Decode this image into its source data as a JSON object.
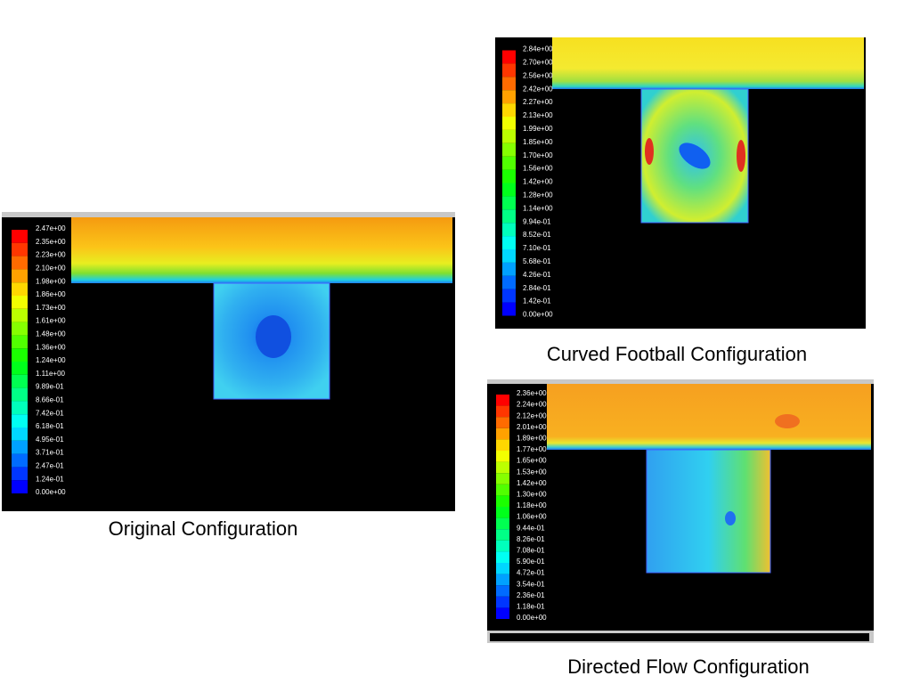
{
  "panels": [
    {
      "caption": "Original Configuration",
      "legend_labels": [
        "2.47e+00",
        "2.35e+00",
        "2.23e+00",
        "2.10e+00",
        "1.98e+00",
        "1.86e+00",
        "1.73e+00",
        "1.61e+00",
        "1.48e+00",
        "1.36e+00",
        "1.24e+00",
        "1.11e+00",
        "9.89e-01",
        "8.66e-01",
        "7.42e-01",
        "6.18e-01",
        "4.95e-01",
        "3.71e-01",
        "2.47e-01",
        "1.24e-01",
        "0.00e+00"
      ]
    },
    {
      "caption": "Curved Football Configuration",
      "legend_labels": [
        "2.84e+00",
        "2.70e+00",
        "2.56e+00",
        "2.42e+00",
        "2.27e+00",
        "2.13e+00",
        "1.99e+00",
        "1.85e+00",
        "1.70e+00",
        "1.56e+00",
        "1.42e+00",
        "1.28e+00",
        "1.14e+00",
        "9.94e-01",
        "8.52e-01",
        "7.10e-01",
        "5.68e-01",
        "4.26e-01",
        "2.84e-01",
        "1.42e-01",
        "0.00e+00"
      ]
    },
    {
      "caption": "Directed Flow Configuration",
      "legend_labels": [
        "2.36e+00",
        "2.24e+00",
        "2.12e+00",
        "2.01e+00",
        "1.89e+00",
        "1.77e+00",
        "1.65e+00",
        "1.53e+00",
        "1.42e+00",
        "1.30e+00",
        "1.18e+00",
        "1.06e+00",
        "9.44e-01",
        "8.26e-01",
        "7.08e-01",
        "5.90e-01",
        "4.72e-01",
        "3.54e-01",
        "2.36e-01",
        "1.18e-01",
        "0.00e+00"
      ]
    }
  ]
}
